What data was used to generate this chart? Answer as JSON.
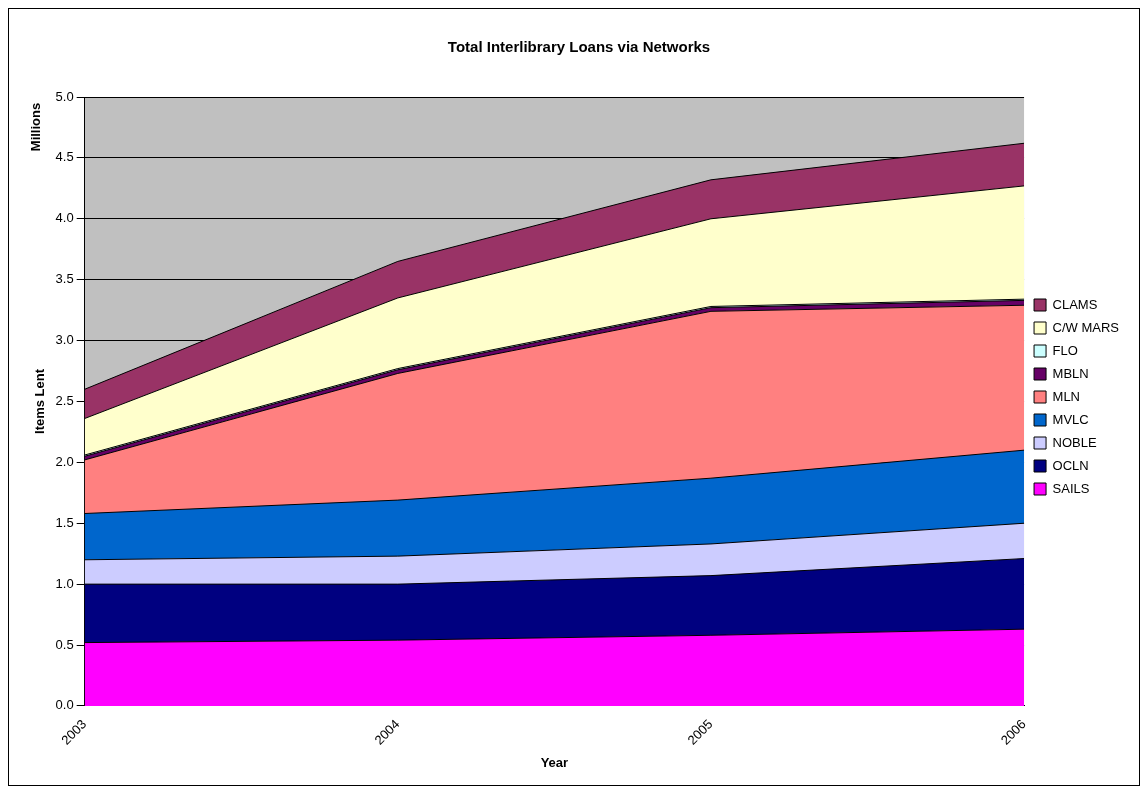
{
  "chart_data": {
    "type": "area",
    "title": "Total Interlibrary Loans via Networks",
    "xlabel": "Year",
    "ylabel": "Items Lent",
    "annotations": [
      "Millions"
    ],
    "categories": [
      "2003",
      "2004",
      "2005",
      "2006"
    ],
    "stacked": true,
    "series": [
      {
        "name": "SAILS",
        "color": "#ff00ff",
        "values": [
          0.52,
          0.54,
          0.58,
          0.63
        ]
      },
      {
        "name": "OCLN",
        "color": "#000080",
        "values": [
          0.48,
          0.46,
          0.49,
          0.58
        ]
      },
      {
        "name": "NOBLE",
        "color": "#ccccff",
        "values": [
          0.2,
          0.23,
          0.26,
          0.29
        ]
      },
      {
        "name": "MVLC",
        "color": "#0066cc",
        "values": [
          0.38,
          0.46,
          0.54,
          0.6
        ]
      },
      {
        "name": "MLN",
        "color": "#ff8080",
        "values": [
          0.44,
          1.04,
          1.37,
          1.19
        ]
      },
      {
        "name": "MBLN",
        "color": "#660066",
        "values": [
          0.03,
          0.03,
          0.03,
          0.04
        ]
      },
      {
        "name": "FLO",
        "color": "#ccffff",
        "values": [
          0.01,
          0.01,
          0.01,
          0.01
        ]
      },
      {
        "name": "C/W MARS",
        "color": "#ffffcc",
        "values": [
          0.3,
          0.58,
          0.72,
          0.93
        ]
      },
      {
        "name": "CLAMS",
        "color": "#993366",
        "values": [
          0.24,
          0.3,
          0.32,
          0.35
        ]
      }
    ],
    "ylim": [
      0,
      5
    ],
    "yticks": [
      {
        "value": 0,
        "label": "0.0"
      },
      0.5,
      {
        "value": 1,
        "label": "1.0"
      },
      1.5,
      {
        "value": 2,
        "label": "2.0"
      },
      2.5,
      {
        "value": 3,
        "label": "3.0"
      },
      3.5,
      {
        "value": 4,
        "label": "4.0"
      },
      4.5,
      {
        "value": 5,
        "label": "5.0"
      }
    ],
    "grid": "y",
    "legend": "right"
  }
}
